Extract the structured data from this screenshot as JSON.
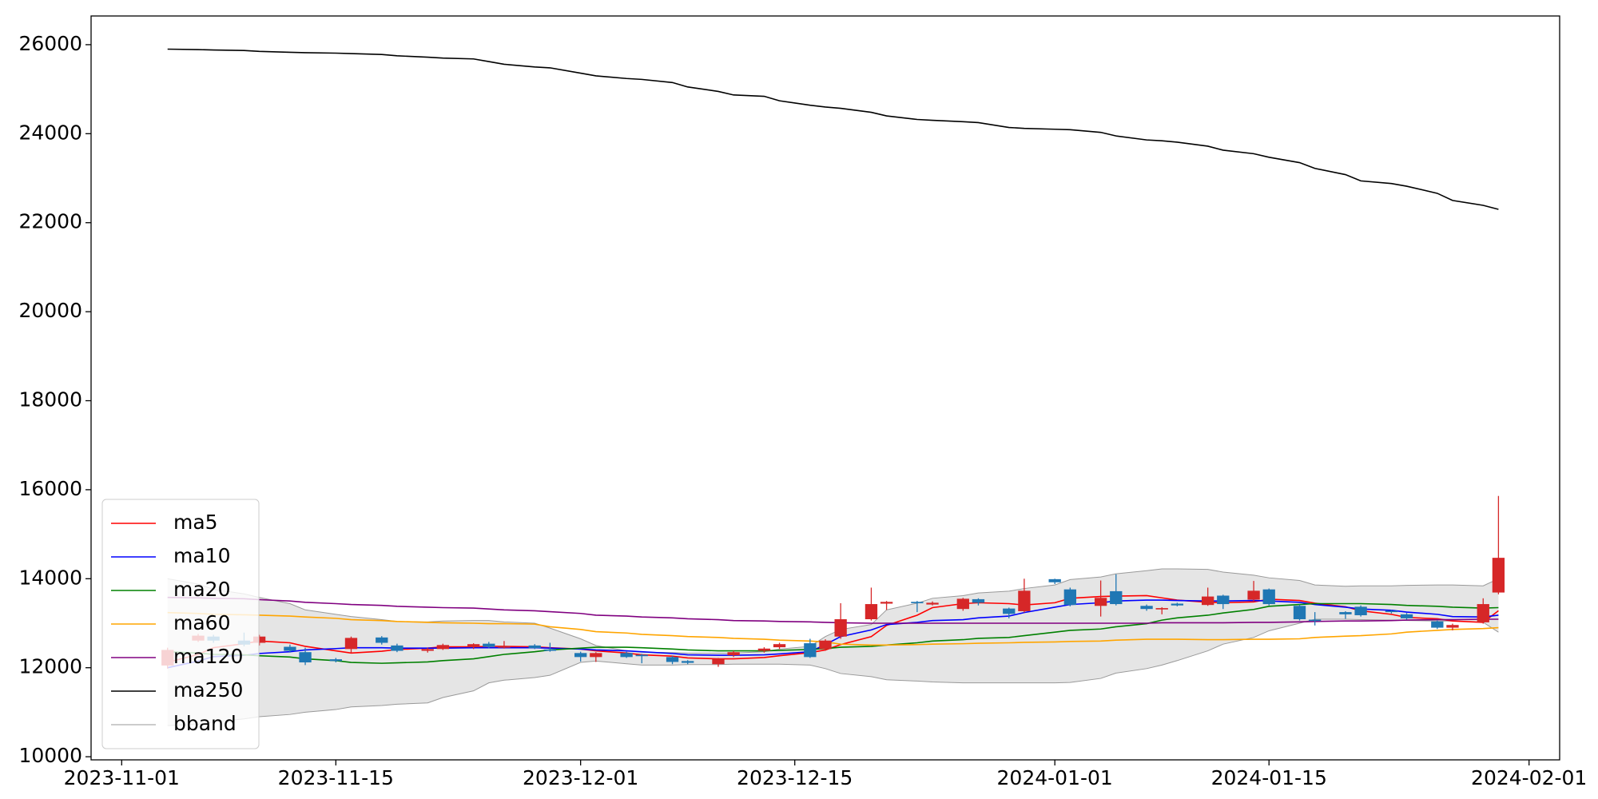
{
  "chart_data": {
    "type": "candlestick",
    "x": [
      "2023-11-04",
      "2023-11-06",
      "2023-11-07",
      "2023-11-09",
      "2023-11-10",
      "2023-11-12",
      "2023-11-13",
      "2023-11-15",
      "2023-11-16",
      "2023-11-18",
      "2023-11-19",
      "2023-11-21",
      "2023-11-22",
      "2023-11-24",
      "2023-11-25",
      "2023-11-26",
      "2023-11-28",
      "2023-11-29",
      "2023-12-01",
      "2023-12-02",
      "2023-12-04",
      "2023-12-05",
      "2023-12-07",
      "2023-12-08",
      "2023-12-10",
      "2023-12-11",
      "2023-12-13",
      "2023-12-14",
      "2023-12-16",
      "2023-12-17",
      "2023-12-18",
      "2023-12-20",
      "2023-12-21",
      "2023-12-23",
      "2023-12-24",
      "2023-12-26",
      "2023-12-27",
      "2023-12-29",
      "2023-12-30",
      "2024-01-01",
      "2024-01-02",
      "2024-01-04",
      "2024-01-05",
      "2024-01-07",
      "2024-01-08",
      "2024-01-09",
      "2024-01-11",
      "2024-01-12",
      "2024-01-14",
      "2024-01-15",
      "2024-01-17",
      "2024-01-18",
      "2024-01-20",
      "2024-01-21",
      "2024-01-23",
      "2024-01-24",
      "2024-01-26",
      "2024-01-27",
      "2024-01-29",
      "2024-01-30"
    ],
    "candles": {
      "up_color": "#d62728",
      "down_color": "#1f77b4",
      "open": [
        12050,
        12610,
        12700,
        12610,
        12560,
        12470,
        12350,
        12190,
        12420,
        12680,
        12500,
        12380,
        12420,
        12460,
        12540,
        12450,
        12500,
        12410,
        12330,
        12240,
        12330,
        12290,
        12240,
        12150,
        12080,
        12280,
        12380,
        12460,
        12550,
        12420,
        12700,
        13090,
        13440,
        13480,
        13420,
        13320,
        13540,
        13330,
        13270,
        13990,
        13760,
        13390,
        13720,
        13390,
        13310,
        13440,
        13410,
        13620,
        13530,
        13760,
        13390,
        13080,
        13250,
        13370,
        13280,
        13200,
        13040,
        12900,
        13020,
        13690
      ],
      "high": [
        12450,
        12760,
        12740,
        12790,
        12740,
        12520,
        12450,
        12220,
        12700,
        12710,
        12540,
        12450,
        12540,
        12550,
        12580,
        12600,
        12530,
        12560,
        12360,
        12350,
        12360,
        12310,
        12270,
        12170,
        12220,
        12380,
        12460,
        12560,
        12650,
        12640,
        13450,
        13800,
        13500,
        13500,
        13490,
        13570,
        13560,
        13350,
        14000,
        14000,
        13800,
        13960,
        14100,
        13420,
        13360,
        13460,
        13800,
        13640,
        13950,
        13780,
        13420,
        13250,
        13270,
        13400,
        13300,
        13230,
        13060,
        12990,
        13560,
        15860
      ],
      "low": [
        11980,
        12580,
        12560,
        12480,
        12500,
        12340,
        12060,
        12120,
        12330,
        12520,
        12350,
        12340,
        12400,
        12420,
        12440,
        12430,
        12420,
        12360,
        12140,
        12130,
        12220,
        12100,
        12080,
        12080,
        12020,
        12240,
        12340,
        12420,
        12220,
        12380,
        12650,
        13060,
        13300,
        13250,
        13400,
        13280,
        13400,
        13110,
        13240,
        13880,
        13380,
        13150,
        13400,
        13280,
        13200,
        13380,
        13390,
        13320,
        13500,
        13400,
        13060,
        12950,
        13100,
        13150,
        13220,
        13080,
        12870,
        12840,
        12990,
        13650
      ],
      "close": [
        12400,
        12720,
        12610,
        12520,
        12700,
        12380,
        12120,
        12150,
        12670,
        12560,
        12380,
        12420,
        12510,
        12530,
        12470,
        12490,
        12440,
        12380,
        12240,
        12330,
        12240,
        12260,
        12130,
        12110,
        12200,
        12350,
        12430,
        12530,
        12240,
        12610,
        13090,
        13430,
        13480,
        13450,
        13460,
        13550,
        13460,
        13210,
        13730,
        13920,
        13410,
        13570,
        13430,
        13320,
        13340,
        13400,
        13600,
        13430,
        13730,
        13430,
        13090,
        13050,
        13200,
        13180,
        13250,
        13110,
        12900,
        12960,
        13430,
        14470
      ]
    },
    "series": [
      {
        "name": "ma5",
        "color": "#ff0000",
        "values": [
          12120,
          12300,
          12450,
          12540,
          12600,
          12560,
          12480,
          12380,
          12330,
          12370,
          12410,
          12440,
          12470,
          12470,
          12480,
          12480,
          12470,
          12450,
          12420,
          12380,
          12330,
          12290,
          12260,
          12220,
          12200,
          12200,
          12230,
          12270,
          12340,
          12400,
          12520,
          12700,
          12950,
          13180,
          13350,
          13440,
          13460,
          13440,
          13410,
          13460,
          13560,
          13600,
          13610,
          13620,
          13570,
          13520,
          13470,
          13460,
          13480,
          13540,
          13510,
          13450,
          13370,
          13280,
          13200,
          13130,
          13100,
          13050,
          13020,
          13280
        ]
      },
      {
        "name": "ma10",
        "color": "#0000ff",
        "values": [
          12000,
          12150,
          12250,
          12280,
          12320,
          12360,
          12400,
          12430,
          12450,
          12450,
          12440,
          12440,
          12440,
          12450,
          12450,
          12450,
          12450,
          12440,
          12420,
          12400,
          12380,
          12360,
          12320,
          12290,
          12280,
          12280,
          12290,
          12310,
          12360,
          12520,
          12700,
          12850,
          12970,
          13020,
          13060,
          13080,
          13120,
          13160,
          13240,
          13360,
          13420,
          13460,
          13500,
          13520,
          13520,
          13510,
          13500,
          13500,
          13510,
          13500,
          13470,
          13420,
          13360,
          13320,
          13290,
          13250,
          13200,
          13150,
          13140,
          13180
        ]
      },
      {
        "name": "ma20",
        "color": "#008000",
        "values": [
          12360,
          12330,
          12300,
          12290,
          12270,
          12240,
          12200,
          12160,
          12120,
          12100,
          12110,
          12130,
          12160,
          12200,
          12250,
          12300,
          12360,
          12400,
          12440,
          12460,
          12460,
          12450,
          12420,
          12400,
          12380,
          12380,
          12380,
          12390,
          12410,
          12430,
          12460,
          12480,
          12510,
          12560,
          12600,
          12630,
          12660,
          12680,
          12720,
          12800,
          12840,
          12870,
          12920,
          12990,
          13070,
          13120,
          13180,
          13230,
          13310,
          13380,
          13420,
          13440,
          13440,
          13440,
          13420,
          13400,
          13380,
          13360,
          13340,
          13350
        ]
      },
      {
        "name": "ma60",
        "color": "#ffa500",
        "values": [
          13240,
          13220,
          13200,
          13190,
          13180,
          13160,
          13140,
          13110,
          13080,
          13060,
          13040,
          13020,
          13010,
          13000,
          12990,
          12990,
          12980,
          12920,
          12860,
          12810,
          12780,
          12750,
          12720,
          12700,
          12680,
          12660,
          12640,
          12620,
          12600,
          12580,
          12530,
          12510,
          12510,
          12520,
          12530,
          12540,
          12550,
          12560,
          12570,
          12580,
          12590,
          12600,
          12620,
          12640,
          12640,
          12640,
          12630,
          12630,
          12640,
          12640,
          12650,
          12680,
          12710,
          12720,
          12760,
          12800,
          12840,
          12860,
          12880,
          12900
        ]
      },
      {
        "name": "ma120",
        "color": "#800080",
        "values": [
          13580,
          13570,
          13560,
          13550,
          13530,
          13500,
          13470,
          13440,
          13420,
          13400,
          13380,
          13360,
          13350,
          13340,
          13320,
          13300,
          13280,
          13260,
          13220,
          13180,
          13160,
          13140,
          13120,
          13100,
          13080,
          13060,
          13050,
          13040,
          13030,
          13020,
          13010,
          13000,
          13000,
          13000,
          13000,
          13000,
          13000,
          13000,
          13000,
          13000,
          13000,
          13000,
          13000,
          13000,
          13010,
          13010,
          13010,
          13010,
          13020,
          13020,
          13030,
          13040,
          13050,
          13050,
          13060,
          13070,
          13080,
          13080,
          13090,
          13090
        ]
      },
      {
        "name": "ma250",
        "color": "#000000",
        "values": [
          25900,
          25890,
          25880,
          25870,
          25850,
          25830,
          25820,
          25810,
          25800,
          25780,
          25750,
          25720,
          25700,
          25680,
          25620,
          25560,
          25500,
          25480,
          25360,
          25300,
          25240,
          25220,
          25150,
          25050,
          24950,
          24870,
          24840,
          24740,
          24640,
          24600,
          24570,
          24480,
          24400,
          24320,
          24300,
          24270,
          24250,
          24140,
          24120,
          24100,
          24090,
          24030,
          23950,
          23860,
          23840,
          23810,
          23720,
          23630,
          23550,
          23470,
          23350,
          23220,
          23080,
          22940,
          22880,
          22820,
          22660,
          22500,
          22390,
          22300
        ]
      },
      {
        "name": "bband",
        "color": "#999999",
        "fill": "#e5e5e5",
        "upper": [
          14000,
          13880,
          13760,
          13660,
          13580,
          13440,
          13300,
          13200,
          13150,
          13080,
          13040,
          13030,
          13050,
          13060,
          13060,
          13030,
          13000,
          12890,
          12650,
          12500,
          12380,
          12350,
          12340,
          12330,
          12330,
          12330,
          12360,
          12420,
          12480,
          12700,
          12860,
          12970,
          13300,
          13450,
          13560,
          13620,
          13680,
          13720,
          13780,
          13860,
          13980,
          14040,
          14110,
          14180,
          14220,
          14220,
          14210,
          14150,
          14080,
          14020,
          13960,
          13860,
          13830,
          13840,
          13840,
          13850,
          13860,
          13860,
          13840,
          14000
        ],
        "lower": [
          10700,
          10730,
          10780,
          10850,
          10900,
          10950,
          11000,
          11060,
          11120,
          11150,
          11180,
          11210,
          11330,
          11480,
          11660,
          11720,
          11780,
          11830,
          12120,
          12150,
          12090,
          12060,
          12060,
          12070,
          12070,
          12080,
          12080,
          12080,
          12060,
          11980,
          11870,
          11800,
          11730,
          11700,
          11680,
          11660,
          11660,
          11660,
          11660,
          11660,
          11670,
          11760,
          11880,
          11980,
          12060,
          12160,
          12380,
          12530,
          12680,
          12830,
          13000,
          13090,
          13090,
          13080,
          13070,
          13060,
          13050,
          13050,
          13020,
          12800
        ]
      }
    ],
    "xlim": [
      "2023-10-30",
      "2024-02-03"
    ],
    "xticks": [
      "2023-11-01",
      "2023-11-15",
      "2023-12-01",
      "2023-12-15",
      "2024-01-01",
      "2024-01-15",
      "2024-02-01"
    ],
    "ylim": [
      9930,
      26645
    ],
    "yticks": [
      10000,
      12000,
      14000,
      16000,
      18000,
      20000,
      22000,
      24000,
      26000
    ],
    "grid": false,
    "legend": "lower left"
  }
}
